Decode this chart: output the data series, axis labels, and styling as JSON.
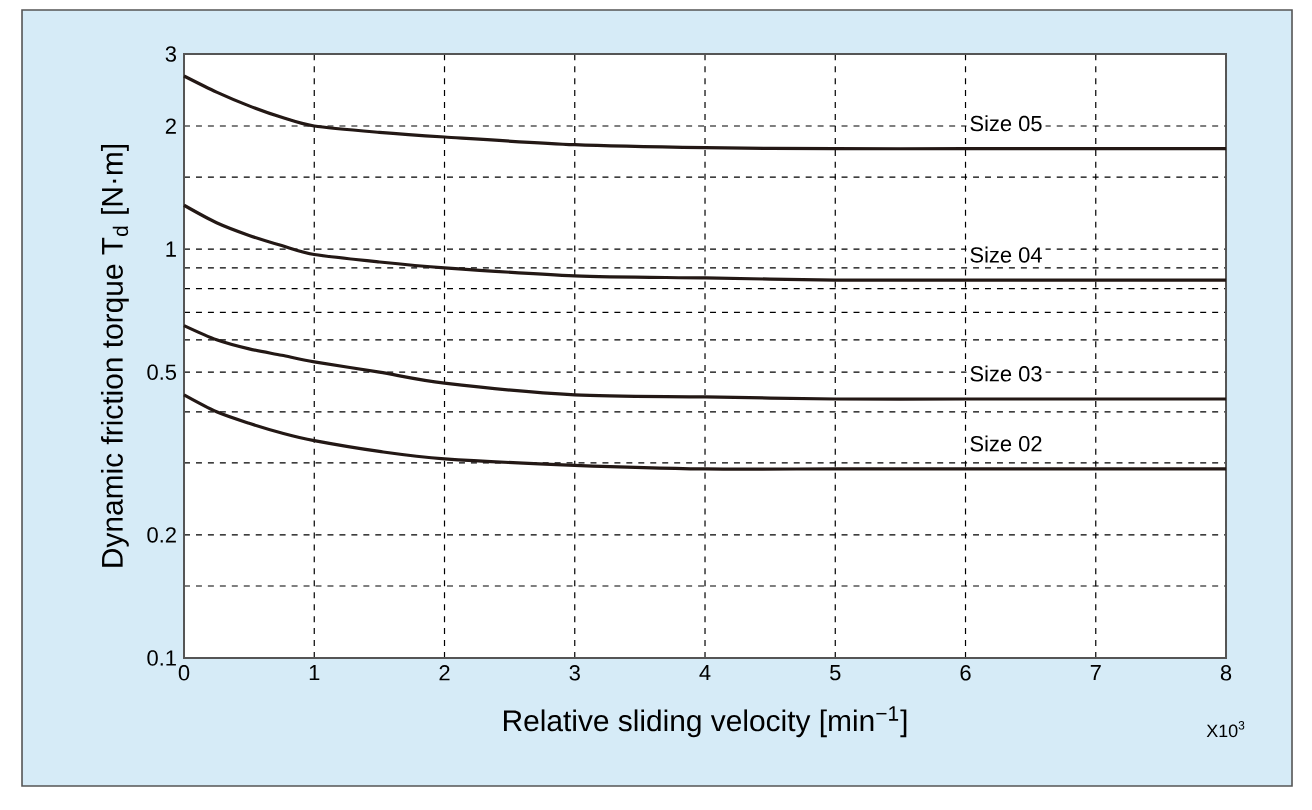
{
  "chart_data": {
    "type": "line",
    "xlabel": "Relative sliding velocity [min$^{−1}$]",
    "ylabel": "Dynamic friction torque T$_{d}$ [N·m]",
    "x": [
      0,
      0.25,
      0.5,
      0.75,
      1,
      1.5,
      2,
      3,
      4,
      5,
      6,
      7,
      8
    ],
    "series": [
      {
        "name": "Size 05",
        "color": "#231815",
        "values": [
          2.65,
          2.42,
          2.24,
          2.1,
          2.0,
          1.93,
          1.88,
          1.8,
          1.77,
          1.76,
          1.76,
          1.76,
          1.76
        ]
      },
      {
        "name": "Size 04",
        "color": "#231815",
        "values": [
          1.28,
          1.16,
          1.08,
          1.02,
          0.97,
          0.93,
          0.9,
          0.86,
          0.85,
          0.84,
          0.84,
          0.84,
          0.84
        ]
      },
      {
        "name": "Size 03",
        "color": "#231815",
        "values": [
          0.65,
          0.6,
          0.57,
          0.55,
          0.53,
          0.5,
          0.47,
          0.44,
          0.435,
          0.43,
          0.43,
          0.43,
          0.43
        ]
      },
      {
        "name": "Size 02",
        "color": "#231815",
        "values": [
          0.44,
          0.4,
          0.375,
          0.355,
          0.34,
          0.32,
          0.307,
          0.296,
          0.29,
          0.29,
          0.29,
          0.29,
          0.29
        ]
      }
    ],
    "xlim": [
      0,
      8
    ],
    "ylim": [
      0.1,
      3
    ],
    "log": "y",
    "xticks": [
      0,
      1,
      2,
      3,
      4,
      5,
      6,
      7,
      8
    ],
    "yticks": [
      0.1,
      {
        "value": 0.15,
        "label": null
      },
      0.2,
      {
        "value": 0.3,
        "label": null
      },
      {
        "value": 0.4,
        "label": null
      },
      0.5,
      {
        "value": 0.6,
        "label": null
      },
      {
        "value": 0.7,
        "label": null
      },
      {
        "value": 0.8,
        "label": null
      },
      {
        "value": 0.9,
        "label": null
      },
      1,
      {
        "value": 1.5,
        "label": null
      },
      2,
      3
    ],
    "grid": true,
    "annotations": [
      "X10$^{3}$"
    ]
  }
}
